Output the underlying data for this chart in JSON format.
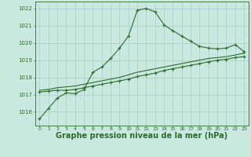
{
  "hours": [
    0,
    1,
    2,
    3,
    4,
    5,
    6,
    7,
    8,
    9,
    10,
    11,
    12,
    13,
    14,
    15,
    16,
    17,
    18,
    19,
    20,
    21,
    22,
    23
  ],
  "line1": [
    1015.6,
    1016.2,
    1016.8,
    1017.1,
    1017.05,
    1017.3,
    1018.3,
    1018.6,
    1019.1,
    1019.7,
    1020.4,
    1021.9,
    1022.0,
    1021.8,
    1021.05,
    1020.7,
    1020.4,
    1020.1,
    1019.8,
    1019.7,
    1019.65,
    1019.7,
    1019.9,
    1019.5
  ],
  "line2": [
    1017.15,
    1017.2,
    1017.25,
    1017.25,
    1017.3,
    1017.4,
    1017.5,
    1017.6,
    1017.7,
    1017.8,
    1017.9,
    1018.05,
    1018.15,
    1018.25,
    1018.4,
    1018.5,
    1018.6,
    1018.7,
    1018.8,
    1018.9,
    1019.0,
    1019.05,
    1019.15,
    1019.2
  ],
  "line3": [
    1017.25,
    1017.3,
    1017.4,
    1017.45,
    1017.5,
    1017.6,
    1017.7,
    1017.8,
    1017.9,
    1018.0,
    1018.15,
    1018.3,
    1018.4,
    1018.5,
    1018.6,
    1018.7,
    1018.8,
    1018.9,
    1019.0,
    1019.1,
    1019.15,
    1019.2,
    1019.3,
    1019.4
  ],
  "line_color": "#2d6b2d",
  "bg_color": "#c8e8e0",
  "grid_color": "#a8ccc8",
  "ylabel_values": [
    1016,
    1017,
    1018,
    1019,
    1020,
    1021,
    1022
  ],
  "ylim": [
    1015.2,
    1022.4
  ],
  "xlabel": "Graphe pression niveau de la mer (hPa)",
  "xlabel_fontsize": 7,
  "marker": "+",
  "marker_size": 3,
  "line_width": 0.8
}
